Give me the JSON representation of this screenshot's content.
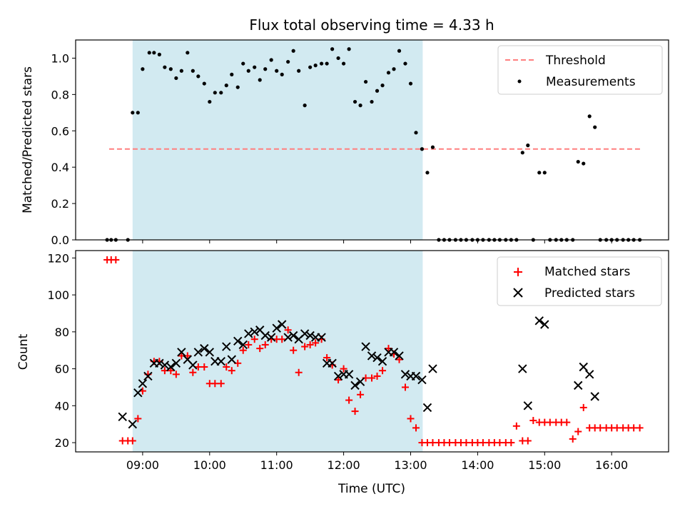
{
  "chart_data": [
    {
      "type": "scatter",
      "title": "Flux total observing time = 4.33 h",
      "xlabel": "",
      "ylabel": "Matched/Predicted stars",
      "xlim": [
        8.0,
        16.85
      ],
      "ylim": [
        0.0,
        1.1
      ],
      "yticks": [
        0.0,
        0.2,
        0.4,
        0.6,
        0.8,
        1.0
      ],
      "ytick_labels": [
        "0.0",
        "0.2",
        "0.4",
        "0.6",
        "0.8",
        "1.0"
      ],
      "shaded_span": [
        8.85,
        13.18
      ],
      "threshold": {
        "name": "Threshold",
        "value": 0.5,
        "x_range": [
          8.5,
          16.45
        ],
        "color": "#ff7f7f"
      },
      "legend": [
        "Threshold",
        "Measurements"
      ],
      "series": [
        {
          "name": "Measurements",
          "color": "#000000",
          "marker": "dot",
          "x": [
            8.47,
            8.53,
            8.6,
            8.78,
            8.85,
            8.93,
            9.0,
            9.1,
            9.17,
            9.25,
            9.33,
            9.42,
            9.5,
            9.58,
            9.67,
            9.75,
            9.83,
            9.92,
            10.0,
            10.08,
            10.17,
            10.25,
            10.33,
            10.42,
            10.5,
            10.58,
            10.67,
            10.75,
            10.83,
            10.92,
            11.0,
            11.08,
            11.17,
            11.25,
            11.33,
            11.42,
            11.5,
            11.58,
            11.67,
            11.75,
            11.83,
            11.92,
            12.0,
            12.08,
            12.17,
            12.25,
            12.33,
            12.42,
            12.5,
            12.58,
            12.67,
            12.75,
            12.83,
            12.92,
            13.0,
            13.08,
            13.17,
            13.25,
            13.33,
            13.42,
            13.5,
            13.58,
            13.67,
            13.75,
            13.83,
            13.92,
            14.0,
            14.08,
            14.17,
            14.25,
            14.33,
            14.42,
            14.5,
            14.58,
            14.67,
            14.75,
            14.83,
            14.92,
            15.0,
            15.08,
            15.17,
            15.25,
            15.33,
            15.42,
            15.5,
            15.58,
            15.67,
            15.75,
            15.83,
            15.92,
            16.0,
            16.08,
            16.17,
            16.25,
            16.33,
            16.42
          ],
          "y": [
            0.0,
            0.0,
            0.0,
            0.0,
            0.7,
            0.7,
            0.94,
            1.03,
            1.03,
            1.02,
            0.95,
            0.94,
            0.89,
            0.93,
            1.03,
            0.93,
            0.9,
            0.86,
            0.76,
            0.81,
            0.81,
            0.85,
            0.91,
            0.84,
            0.97,
            0.93,
            0.95,
            0.88,
            0.94,
            0.99,
            0.93,
            0.91,
            0.98,
            1.04,
            0.93,
            0.74,
            0.95,
            0.96,
            0.97,
            0.97,
            1.05,
            1.0,
            0.97,
            1.05,
            0.76,
            0.74,
            0.87,
            0.76,
            0.82,
            0.85,
            0.92,
            0.94,
            1.04,
            0.97,
            0.86,
            0.59,
            0.5,
            0.37,
            0.51,
            0.0,
            0.0,
            0.0,
            0.0,
            0.0,
            0.0,
            0.0,
            0.0,
            0.0,
            0.0,
            0.0,
            0.0,
            0.0,
            0.0,
            0.0,
            0.48,
            0.52,
            0.0,
            0.37,
            0.37,
            0.0,
            0.0,
            0.0,
            0.0,
            0.0,
            0.43,
            0.42,
            0.68,
            0.62,
            0.0,
            0.0,
            0.0,
            0.0,
            0.0,
            0.0,
            0.0,
            0.0
          ]
        }
      ]
    },
    {
      "type": "scatter",
      "title": "",
      "xlabel": "Time (UTC)",
      "ylabel": "Count",
      "xlim": [
        8.0,
        16.85
      ],
      "ylim": [
        15,
        124
      ],
      "yticks": [
        20,
        40,
        60,
        80,
        100,
        120
      ],
      "ytick_labels": [
        "20",
        "40",
        "60",
        "80",
        "100",
        "120"
      ],
      "xticks": [
        9,
        10,
        11,
        12,
        13,
        14,
        15,
        16
      ],
      "xtick_labels": [
        "09:00",
        "10:00",
        "11:00",
        "12:00",
        "13:00",
        "14:00",
        "15:00",
        "16:00"
      ],
      "shaded_span": [
        8.85,
        13.18
      ],
      "legend": [
        "Matched stars",
        "Predicted stars"
      ],
      "series": [
        {
          "name": "Matched stars",
          "color": "#ff0000",
          "marker": "plus",
          "x": [
            8.47,
            8.53,
            8.6,
            8.7,
            8.78,
            8.85,
            8.93,
            9.0,
            9.08,
            9.17,
            9.25,
            9.33,
            9.42,
            9.5,
            9.58,
            9.67,
            9.75,
            9.83,
            9.92,
            10.0,
            10.08,
            10.17,
            10.25,
            10.33,
            10.42,
            10.5,
            10.58,
            10.67,
            10.75,
            10.83,
            10.92,
            11.0,
            11.08,
            11.17,
            11.25,
            11.33,
            11.42,
            11.5,
            11.58,
            11.67,
            11.75,
            11.83,
            11.92,
            12.0,
            12.08,
            12.17,
            12.25,
            12.33,
            12.42,
            12.5,
            12.58,
            12.67,
            12.75,
            12.83,
            12.92,
            13.0,
            13.08,
            13.17,
            13.25,
            13.33,
            13.42,
            13.5,
            13.58,
            13.67,
            13.75,
            13.83,
            13.92,
            14.0,
            14.08,
            14.17,
            14.25,
            14.33,
            14.42,
            14.5,
            14.58,
            14.67,
            14.75,
            14.83,
            14.92,
            15.0,
            15.08,
            15.17,
            15.25,
            15.33,
            15.42,
            15.5,
            15.58,
            15.67,
            15.75,
            15.83,
            15.92,
            16.0,
            16.08,
            16.17,
            16.25,
            16.33,
            16.42
          ],
          "y": [
            119,
            119,
            119,
            21,
            21,
            21,
            33,
            48,
            57,
            64,
            64,
            59,
            59,
            57,
            67,
            67,
            58,
            61,
            61,
            52,
            52,
            52,
            61,
            59,
            63,
            70,
            73,
            76,
            71,
            73,
            76,
            76,
            76,
            81,
            70,
            58,
            72,
            73,
            74,
            76,
            66,
            62,
            54,
            60,
            43,
            37,
            46,
            55,
            55,
            56,
            59,
            71,
            68,
            65,
            50,
            33,
            28,
            20,
            20,
            20,
            20,
            20,
            20,
            20,
            20,
            20,
            20,
            20,
            20,
            20,
            20,
            20,
            20,
            20,
            29,
            21,
            21,
            32,
            31,
            31,
            31,
            31,
            31,
            31,
            22,
            26,
            39,
            28,
            28,
            28,
            28,
            28,
            28,
            28,
            28,
            28,
            28
          ]
        },
        {
          "name": "Predicted stars",
          "color": "#000000",
          "marker": "cross",
          "x": [
            8.7,
            8.85,
            8.93,
            9.0,
            9.08,
            9.17,
            9.25,
            9.33,
            9.42,
            9.5,
            9.58,
            9.67,
            9.75,
            9.83,
            9.92,
            10.0,
            10.08,
            10.17,
            10.25,
            10.33,
            10.42,
            10.5,
            10.58,
            10.67,
            10.75,
            10.83,
            10.92,
            11.0,
            11.08,
            11.17,
            11.25,
            11.33,
            11.42,
            11.5,
            11.58,
            11.67,
            11.75,
            11.83,
            11.92,
            12.0,
            12.08,
            12.17,
            12.25,
            12.33,
            12.42,
            12.5,
            12.58,
            12.67,
            12.75,
            12.83,
            12.92,
            13.0,
            13.08,
            13.17,
            13.25,
            13.33,
            14.67,
            14.75,
            14.92,
            15.0,
            15.5,
            15.58,
            15.67,
            15.75
          ],
          "y": [
            34,
            30,
            47,
            52,
            56,
            63,
            63,
            62,
            61,
            63,
            69,
            65,
            62,
            69,
            71,
            69,
            64,
            64,
            72,
            65,
            75,
            73,
            79,
            80,
            81,
            78,
            77,
            82,
            84,
            77,
            78,
            76,
            79,
            78,
            77,
            77,
            63,
            63,
            56,
            57,
            57,
            51,
            53,
            72,
            67,
            66,
            64,
            69,
            69,
            67,
            57,
            56,
            56,
            54,
            39,
            60,
            60,
            40,
            86,
            84,
            51,
            61,
            57,
            45
          ]
        }
      ]
    }
  ]
}
